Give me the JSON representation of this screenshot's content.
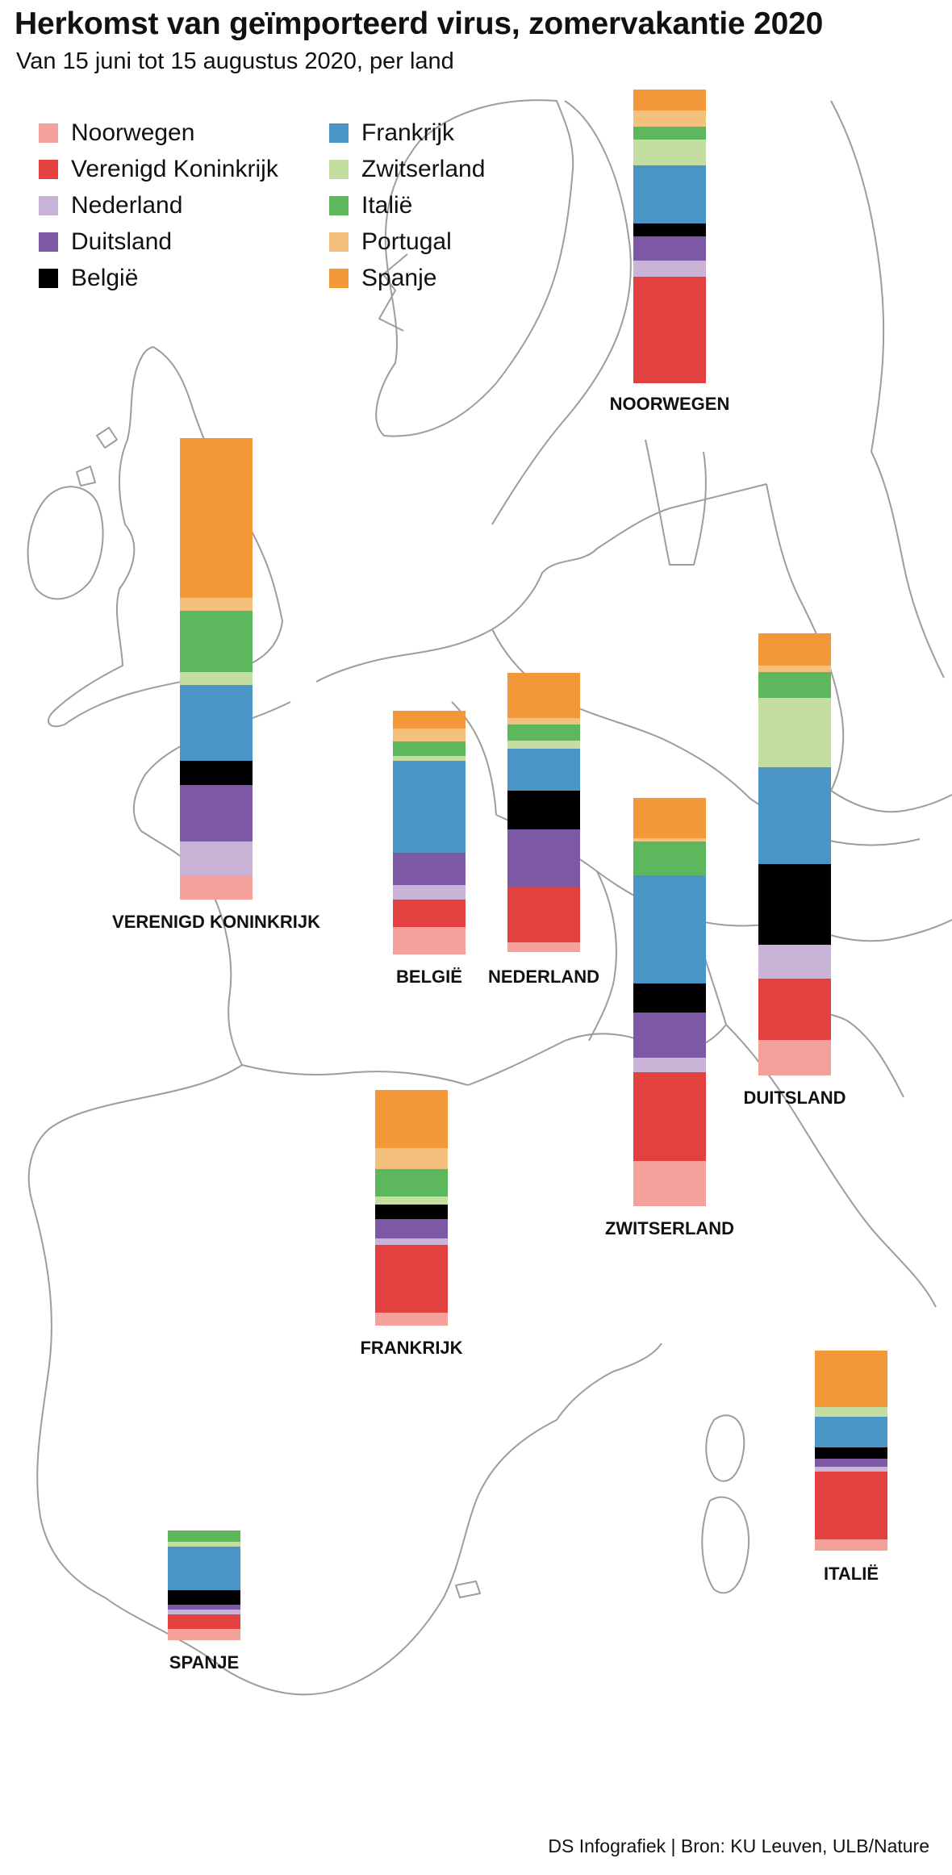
{
  "title": "Herkomst van geïmporteerd virus, zomervakantie 2020",
  "subtitle": "Van 15 juni tot 15 augustus 2020, per land",
  "footer": "DS Infografiek | Bron: KU Leuven, ULB/Nature",
  "legend": [
    {
      "label": "Noorwegen",
      "color": "#f4a09b"
    },
    {
      "label": "Verenigd Koninkrijk",
      "color": "#e34040"
    },
    {
      "label": "Nederland",
      "color": "#c9b3d6"
    },
    {
      "label": "Duitsland",
      "color": "#7d58a5"
    },
    {
      "label": "België",
      "color": "#000000"
    },
    {
      "label": "Frankrijk",
      "color": "#4a94c6"
    },
    {
      "label": "Zwitserland",
      "color": "#c3dea0"
    },
    {
      "label": "Italië",
      "color": "#5db75d"
    },
    {
      "label": "Portugal",
      "color": "#f4c07e"
    },
    {
      "label": "Spanje",
      "color": "#f29838"
    }
  ],
  "chart_data": {
    "type": "bar",
    "stacked": true,
    "series_order": [
      "Noorwegen",
      "Verenigd Koninkrijk",
      "Nederland",
      "Duitsland",
      "België",
      "Frankrijk",
      "Zwitserland",
      "Italië",
      "Portugal",
      "Spanje"
    ],
    "bars": [
      {
        "label": "NOORWEGEN",
        "values": [
          0,
          66,
          10,
          15,
          8,
          36,
          16,
          8,
          10,
          13
        ]
      },
      {
        "label": "VERENIGD KONINKRIJK",
        "values": [
          15,
          0,
          21,
          35,
          15,
          47,
          8,
          38,
          8,
          99
        ]
      },
      {
        "label": "BELGIË",
        "values": [
          17,
          17,
          9,
          20,
          0,
          57,
          3,
          9,
          8,
          11
        ]
      },
      {
        "label": "NEDERLAND",
        "values": [
          6,
          34,
          0,
          36,
          24,
          26,
          5,
          10,
          4,
          28
        ]
      },
      {
        "label": "ZWITSERLAND",
        "values": [
          28,
          55,
          9,
          28,
          18,
          67,
          0,
          21,
          2,
          25
        ]
      },
      {
        "label": "DUITSLAND",
        "values": [
          22,
          38,
          21,
          0,
          50,
          60,
          43,
          16,
          4,
          20
        ]
      },
      {
        "label": "FRANKRIJK",
        "values": [
          8,
          42,
          4,
          12,
          9,
          0,
          5,
          17,
          13,
          36
        ]
      },
      {
        "label": "ITALIË",
        "values": [
          7,
          42,
          3,
          5,
          7,
          19,
          6,
          0,
          0,
          35
        ]
      },
      {
        "label": "SPANJE",
        "values": [
          7,
          9,
          3,
          3,
          9,
          27,
          3,
          7,
          0,
          0
        ]
      }
    ]
  }
}
